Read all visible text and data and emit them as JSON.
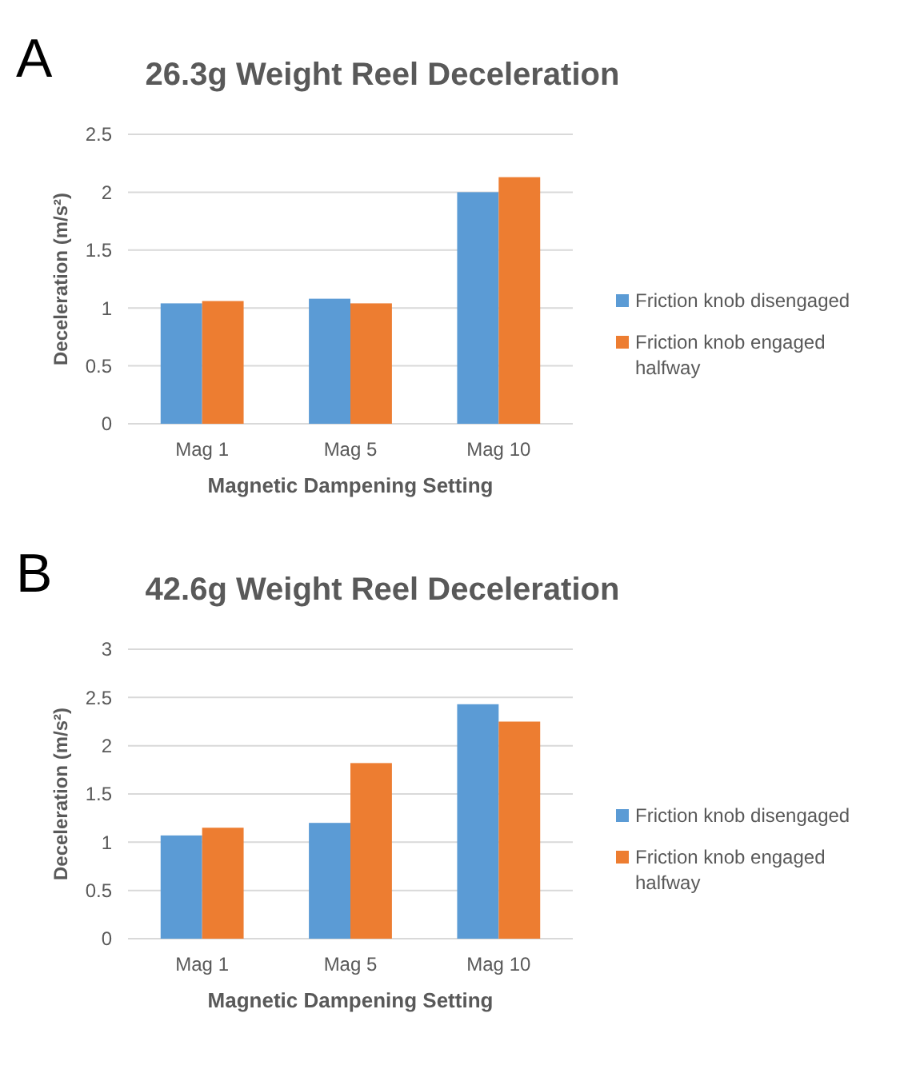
{
  "chart_data": [
    {
      "type": "bar",
      "title": "26.3g Weight Reel Deceleration",
      "xlabel": "Magnetic Dampening Setting",
      "ylabel": "Deceleration (m/s²)",
      "categories": [
        "Mag 1",
        "Mag 5",
        "Mag 10"
      ],
      "series": [
        {
          "name": "Friction knob disengaged",
          "color": "#5b9bd5",
          "values": [
            1.04,
            1.08,
            2.0
          ]
        },
        {
          "name": "Friction knob engaged halfway",
          "color": "#ed7d31",
          "values": [
            1.06,
            1.04,
            2.13
          ]
        }
      ],
      "ylim": [
        0,
        2.5
      ],
      "yticks": [
        0,
        0.5,
        1,
        1.5,
        2,
        2.5
      ],
      "grid": "y",
      "legend": "right",
      "annotations": [
        "A"
      ]
    },
    {
      "type": "bar",
      "title": "42.6g Weight Reel Deceleration",
      "xlabel": "Magnetic Dampening Setting",
      "ylabel": "Deceleration (m/s²)",
      "categories": [
        "Mag 1",
        "Mag 5",
        "Mag 10"
      ],
      "series": [
        {
          "name": "Friction knob disengaged",
          "color": "#5b9bd5",
          "values": [
            1.07,
            1.2,
            2.43
          ]
        },
        {
          "name": "Friction knob engaged halfway",
          "color": "#ed7d31",
          "values": [
            1.15,
            1.82,
            2.25
          ]
        }
      ],
      "ylim": [
        0,
        3
      ],
      "yticks": [
        0,
        0.5,
        1,
        1.5,
        2,
        2.5,
        3
      ],
      "grid": "y",
      "legend": "right",
      "annotations": [
        "B"
      ]
    }
  ]
}
